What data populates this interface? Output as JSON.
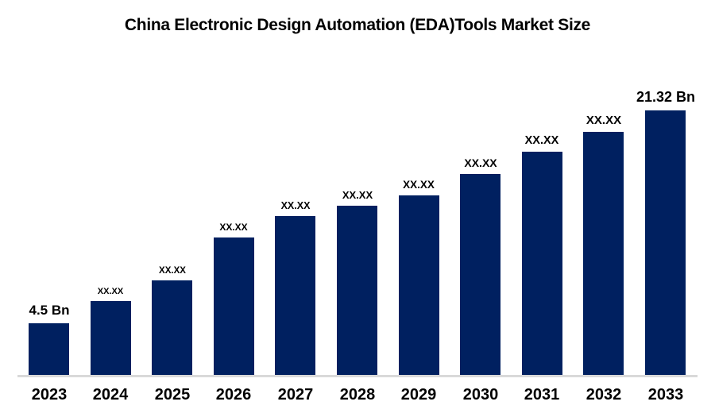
{
  "title": "China Electronic Design Automation (EDA)Tools Market Size",
  "colors": {
    "bar_fill": "#002060",
    "axis_line": "#d9d9d9",
    "text": "#000000",
    "background": "#ffffff"
  },
  "chart_data": {
    "type": "bar",
    "title": "China Electronic Design Automation (EDA)Tools Market Size",
    "categories": [
      "2023",
      "2024",
      "2025",
      "2026",
      "2027",
      "2028",
      "2029",
      "2030",
      "2031",
      "2032",
      "2033"
    ],
    "values": [
      4.5,
      6.26,
      7.89,
      11.28,
      12.97,
      13.79,
      14.6,
      16.3,
      18.06,
      19.63,
      21.32
    ],
    "bar_labels": [
      "4.5 Bn",
      "XX.XX",
      "XX.XX",
      "XX.XX",
      "XX.XX",
      "XX.XX",
      "XX.XX",
      "XX.XX",
      "XX.XX",
      "XX.XX",
      "21.32 Bn"
    ],
    "value_unit": "Bn",
    "xlabel": "",
    "ylabel": "",
    "ylim": [
      0,
      22
    ],
    "grid": false,
    "legend": false,
    "value_axis_visible": false,
    "notes": "Middle-year values are masked on the chart as XX.XX; only 2023 (4.5 Bn) and 2033 (21.32 Bn) are shown explicitly. Numeric values are estimated from bar heights."
  }
}
